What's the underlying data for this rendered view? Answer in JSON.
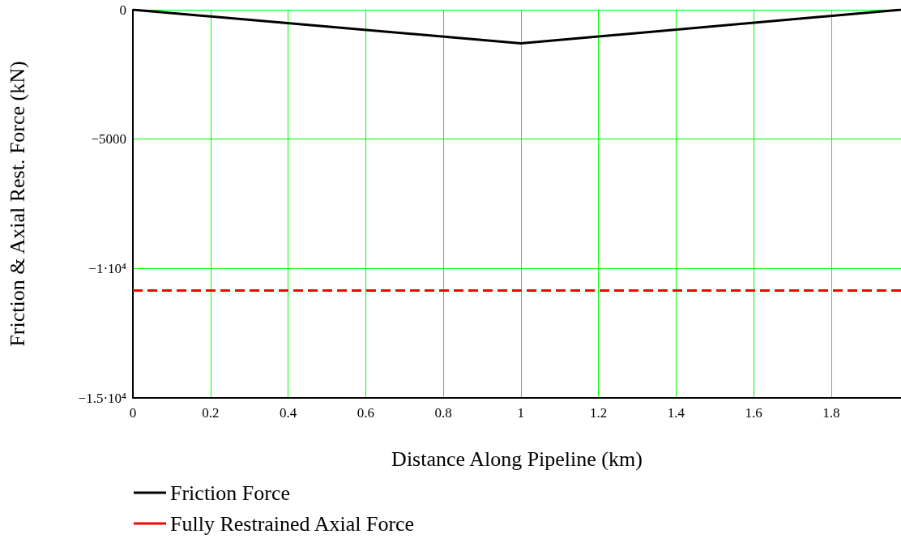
{
  "chart_data": {
    "type": "line",
    "xlabel": "Distance Along Pipeline (km)",
    "ylabel": "Friction & Axial Rest. Force (kN)",
    "xlim": [
      0,
      1.98
    ],
    "xticks": [
      0,
      0.2,
      0.4,
      0.6,
      0.8,
      1,
      1.2,
      1.4,
      1.6,
      1.8
    ],
    "ylim": [
      -15000,
      0
    ],
    "yticks": [
      {
        "value": -15000,
        "label": "−1.5·10⁴"
      },
      {
        "value": -10000,
        "label": "−1·10⁴"
      },
      {
        "value": -5000,
        "label": "−5000"
      },
      0
    ],
    "grid": true,
    "legend": "bottom left",
    "marker": "none",
    "series": [
      {
        "name": "Friction Force",
        "color": "#000000",
        "line_style": "solid",
        "x": [
          0,
          1,
          1.98
        ],
        "values": [
          0,
          -1300,
          0
        ]
      },
      {
        "name": "Fully Restrained Axial Force",
        "color": "#ff0000",
        "line_style": "dashed",
        "x": [
          0,
          1.98
        ],
        "values": [
          -10850,
          -10850
        ]
      }
    ]
  }
}
